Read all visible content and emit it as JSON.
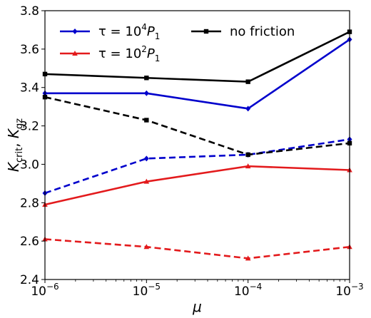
{
  "chart_data": {
    "type": "line",
    "xscale": "log",
    "x": [
      1e-06,
      1e-05,
      0.0001,
      0.001
    ],
    "xlim": [
      1e-06,
      0.001
    ],
    "ylim": [
      2.4,
      3.8
    ],
    "xticks": [
      {
        "value": 1e-06,
        "base": "10",
        "exp": "−6"
      },
      {
        "value": 1e-05,
        "base": "10",
        "exp": "−5"
      },
      {
        "value": 0.0001,
        "base": "10",
        "exp": "−4"
      },
      {
        "value": 0.001,
        "base": "10",
        "exp": "−3"
      }
    ],
    "yticks": [
      2.4,
      2.6,
      2.8,
      3.0,
      3.2,
      3.4,
      3.6,
      3.8
    ],
    "ytick_labels": [
      "2.4",
      "2.6",
      "2.8",
      "3.0",
      "3.2",
      "3.4",
      "3.6",
      "3.8"
    ],
    "xlabel": "μ",
    "ylabel": {
      "main": "K",
      "sub1": "crit",
      "sep": ",  ",
      "main2": "K",
      "sub2": "gz"
    },
    "grid": false,
    "legend_position": "top-left",
    "series": [
      {
        "name": "τ = 10⁴P₁",
        "legend": {
          "pre": "τ = 10",
          "sup": "4",
          "mid": "P",
          "sub": "1"
        },
        "color": "#0000cc",
        "marker": "diamond",
        "style": "solid",
        "values": [
          3.37,
          3.37,
          3.29,
          3.65
        ]
      },
      {
        "name": "τ = 10²P₁",
        "legend": {
          "pre": "τ = 10",
          "sup": "2",
          "mid": "P",
          "sub": "1"
        },
        "color": "#e31a1c",
        "marker": "triangle",
        "style": "solid",
        "values": [
          2.79,
          2.91,
          2.99,
          2.97
        ]
      },
      {
        "name": "no friction",
        "legend": {
          "pre": "no friction",
          "sup": "",
          "mid": "",
          "sub": ""
        },
        "color": "#000000",
        "marker": "square",
        "style": "solid",
        "values": [
          3.47,
          3.45,
          3.43,
          3.69
        ]
      },
      {
        "name": "",
        "color": "#0000cc",
        "marker": "diamond",
        "style": "dashed",
        "values": [
          2.85,
          3.03,
          3.05,
          3.13
        ]
      },
      {
        "name": "",
        "color": "#e31a1c",
        "marker": "triangle",
        "style": "dashed",
        "values": [
          2.61,
          2.57,
          2.51,
          2.57
        ]
      },
      {
        "name": "",
        "color": "#000000",
        "marker": "square",
        "style": "dashed",
        "values": [
          3.35,
          3.23,
          3.05,
          3.11
        ]
      }
    ]
  }
}
